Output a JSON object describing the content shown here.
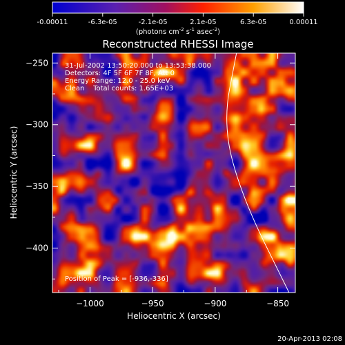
{
  "colorbar": {
    "tick_labels": [
      "-0.00011",
      "-6.3e-05",
      "-2.1e-05",
      "2.1e-05",
      "6.3e-05",
      "0.00011"
    ],
    "units_parts": [
      "(photons cm",
      "-2",
      " s",
      "-1",
      " asec",
      "-2",
      ")"
    ]
  },
  "info": {
    "line1": "31-Jul-2002 13:50:20.000 to 13:53:38.000",
    "line2": "Detectors: 4F 5F 6F 7F 8F, Att 0",
    "line3": "Energy Range: 12.0 - 25.0 keV",
    "line4": "Clean    Total counts: 1.65E+03",
    "peak": "Position of Peak = [-936,-336]"
  },
  "footer": {
    "timestamp": "20-Apr-2013 02:08"
  },
  "chart_data": {
    "type": "heatmap",
    "title": "Reconstructed RHESSI Image",
    "xlabel": "Heliocentric X (arcsec)",
    "ylabel": "Heliocentric Y (arcsec)",
    "xlim": [
      -1030,
      -836
    ],
    "ylim": [
      -436,
      -242
    ],
    "x_ticks": [
      -1000,
      -950,
      -900,
      -850
    ],
    "y_ticks": [
      -250,
      -300,
      -350,
      -400
    ],
    "x_tick_labels": [
      "−1000",
      "−950",
      "−900",
      "−850"
    ],
    "y_tick_labels": [
      "−250",
      "−300",
      "−350",
      "−400"
    ],
    "colorbar_range": [
      -0.00011,
      0.00011
    ],
    "peak_position": [
      -936,
      -336
    ],
    "limb_points": [
      [
        -883,
        -242
      ],
      [
        -894,
        -300
      ],
      [
        -878,
        -360
      ],
      [
        -841,
        -436
      ]
    ],
    "colors": {
      "background": "#000000",
      "limb": "#ffffff"
    }
  }
}
